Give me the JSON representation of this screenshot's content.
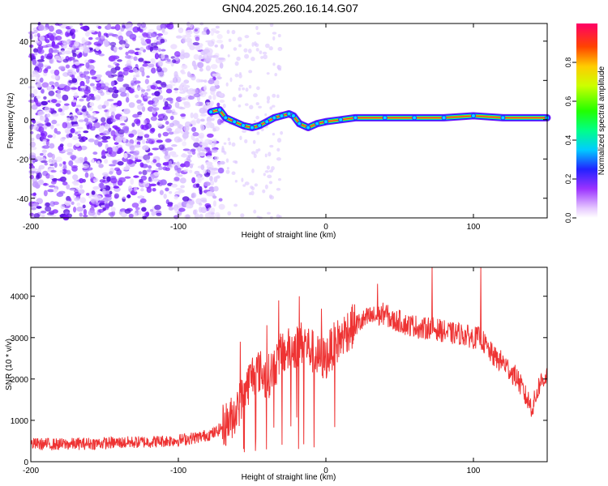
{
  "title": "GN04.2025.260.16.14.G07",
  "chart_data": [
    {
      "type": "heatmap",
      "title": "GN04.2025.260.16.14.G07",
      "xlabel": "Height of straight line (km)",
      "ylabel": "Frequency (Hz)",
      "xlim": [
        -200,
        150
      ],
      "ylim": [
        -50,
        49
      ],
      "x_ticks": [
        "-200",
        "-100",
        "0",
        "100"
      ],
      "y_ticks": [
        "-40",
        "-20",
        "0",
        "20",
        "40"
      ],
      "colorbar": {
        "label": "Normalized spectral amplitude",
        "range": [
          0,
          1
        ],
        "ticks": [
          "0.0",
          "0.2",
          "0.4",
          "0.6",
          "0.8"
        ]
      },
      "noise_region_x": [
        -200,
        -70
      ],
      "signal_trace": {
        "x": [
          -78,
          -72,
          -68,
          -62,
          -56,
          -50,
          -45,
          -40,
          -35,
          -30,
          -25,
          -22,
          -18,
          -12,
          -6,
          0,
          10,
          20,
          40,
          60,
          80,
          100,
          120,
          150
        ],
        "y": [
          4,
          5,
          1,
          -1,
          -3,
          -4,
          -3,
          -1,
          1,
          2,
          3,
          2,
          -2,
          -4,
          -2,
          -1,
          0,
          1,
          1,
          1,
          1,
          2,
          1,
          1
        ]
      }
    },
    {
      "type": "line",
      "xlabel": "Height of straight line (km)",
      "ylabel": "SNR (10 * v/v)",
      "xlim": [
        -200,
        150
      ],
      "ylim": [
        0,
        4700
      ],
      "x_ticks": [
        "-200",
        "-100",
        "0",
        "100"
      ],
      "y_ticks": [
        "0",
        "1000",
        "2000",
        "3000",
        "4000"
      ],
      "series": [
        {
          "name": "SNR",
          "color": "#ee3333",
          "x": [
            -200,
            -180,
            -160,
            -140,
            -120,
            -100,
            -85,
            -75,
            -70,
            -65,
            -60,
            -55,
            -50,
            -45,
            -40,
            -35,
            -30,
            -25,
            -20,
            -15,
            -10,
            -5,
            0,
            5,
            10,
            15,
            20,
            25,
            30,
            35,
            40,
            45,
            50,
            55,
            60,
            65,
            70,
            75,
            80,
            85,
            90,
            95,
            100,
            105,
            110,
            115,
            120,
            125,
            130,
            135,
            140,
            145,
            150
          ],
          "y": [
            430,
            420,
            440,
            460,
            480,
            520,
            600,
            700,
            850,
            1000,
            1300,
            1700,
            2100,
            2200,
            2000,
            2300,
            2600,
            2700,
            2800,
            2900,
            2700,
            2500,
            2500,
            2800,
            3000,
            3200,
            3300,
            3400,
            3500,
            3500,
            3600,
            3400,
            3400,
            3300,
            3300,
            3200,
            3250,
            3200,
            3150,
            3100,
            3100,
            3050,
            3000,
            3000,
            2700,
            2500,
            2400,
            2200,
            2000,
            1600,
            1300,
            1900,
            2100
          ],
          "spike_x": [
            -58,
            -40,
            -32,
            -18,
            -3,
            35,
            72,
            105
          ],
          "spike_y": [
            2900,
            3300,
            3900,
            4000,
            3700,
            4300,
            4700,
            4900
          ]
        }
      ]
    }
  ]
}
